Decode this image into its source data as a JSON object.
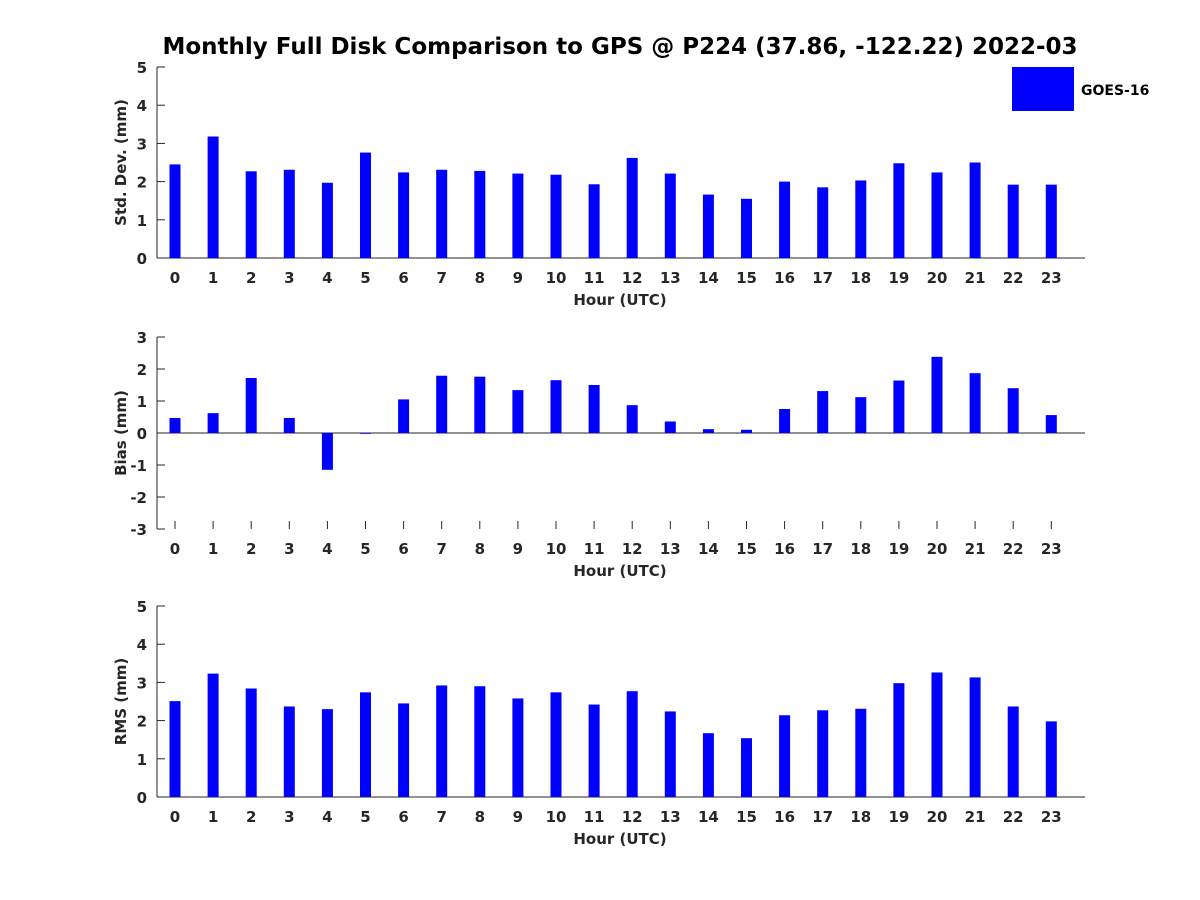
{
  "title": "Monthly Full Disk Comparison to GPS @ P224 (37.86, -122.22) 2022-03",
  "legend": {
    "label": "GOES-16",
    "color": "#0000ff"
  },
  "chart_data": [
    {
      "type": "bar",
      "categories": [
        "0",
        "1",
        "2",
        "3",
        "4",
        "5",
        "6",
        "7",
        "8",
        "9",
        "10",
        "11",
        "12",
        "13",
        "14",
        "15",
        "16",
        "17",
        "18",
        "19",
        "20",
        "21",
        "22",
        "23"
      ],
      "series": [
        {
          "name": "GOES-16",
          "values": [
            2.45,
            3.18,
            2.27,
            2.31,
            1.97,
            2.76,
            2.24,
            2.31,
            2.28,
            2.21,
            2.18,
            1.93,
            2.62,
            2.21,
            1.66,
            1.55,
            2.0,
            1.85,
            2.03,
            2.48,
            2.24,
            2.5,
            1.92,
            1.92
          ]
        }
      ],
      "xlabel": "Hour (UTC)",
      "ylabel": "Std. Dev. (mm)",
      "ylim": [
        0,
        5
      ],
      "yticks": [
        0,
        1,
        2,
        3,
        4,
        5
      ],
      "grid": false,
      "legend_position": "top-right"
    },
    {
      "type": "bar",
      "categories": [
        "0",
        "1",
        "2",
        "3",
        "4",
        "5",
        "6",
        "7",
        "8",
        "9",
        "10",
        "11",
        "12",
        "13",
        "14",
        "15",
        "16",
        "17",
        "18",
        "19",
        "20",
        "21",
        "22",
        "23"
      ],
      "series": [
        {
          "name": "GOES-16",
          "values": [
            0.47,
            0.62,
            1.72,
            0.47,
            -1.15,
            0.0,
            1.05,
            1.79,
            1.76,
            1.34,
            1.65,
            1.5,
            0.87,
            0.36,
            0.12,
            0.1,
            0.75,
            1.31,
            1.12,
            1.64,
            2.38,
            1.87,
            1.4,
            0.56
          ]
        }
      ],
      "xlabel": "Hour (UTC)",
      "ylabel": "Bias (mm)",
      "ylim": [
        -3,
        3
      ],
      "yticks": [
        -3,
        -2,
        -1,
        0,
        1,
        2,
        3
      ],
      "grid": false
    },
    {
      "type": "bar",
      "categories": [
        "0",
        "1",
        "2",
        "3",
        "4",
        "5",
        "6",
        "7",
        "8",
        "9",
        "10",
        "11",
        "12",
        "13",
        "14",
        "15",
        "16",
        "17",
        "18",
        "19",
        "20",
        "21",
        "22",
        "23"
      ],
      "series": [
        {
          "name": "GOES-16",
          "values": [
            2.51,
            3.23,
            2.84,
            2.37,
            2.3,
            2.74,
            2.45,
            2.92,
            2.9,
            2.58,
            2.74,
            2.42,
            2.77,
            2.24,
            1.67,
            1.54,
            2.14,
            2.27,
            2.31,
            2.98,
            3.26,
            3.13,
            2.37,
            1.98
          ]
        }
      ],
      "xlabel": "Hour (UTC)",
      "ylabel": "RMS (mm)",
      "ylim": [
        0,
        5
      ],
      "yticks": [
        0,
        1,
        2,
        3,
        4,
        5
      ],
      "grid": false
    }
  ]
}
